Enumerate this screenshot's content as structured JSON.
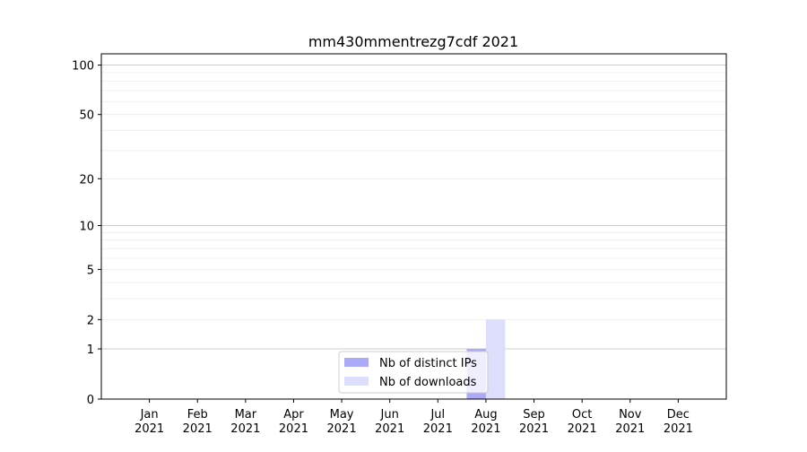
{
  "chart_data": {
    "type": "bar",
    "title": "mm430mmentrezg7cdf 2021",
    "xlabel": "",
    "ylabel": "",
    "y_scale": "log(1+y)",
    "ylim": [
      0,
      117
    ],
    "y_ticks": [
      0,
      1,
      2,
      5,
      10,
      20,
      50,
      100
    ],
    "y_tick_labels": [
      "0",
      "1",
      "2",
      "5",
      "10",
      "20",
      "50",
      "100"
    ],
    "grid": true,
    "legend_placement": "lower-center",
    "categories": [
      "Jan\n2021",
      "Feb\n2021",
      "Mar\n2021",
      "Apr\n2021",
      "May\n2021",
      "Jun\n2021",
      "Jul\n2021",
      "Aug\n2021",
      "Sep\n2021",
      "Oct\n2021",
      "Nov\n2021",
      "Dec\n2021"
    ],
    "category_months": [
      "Jan",
      "Feb",
      "Mar",
      "Apr",
      "May",
      "Jun",
      "Jul",
      "Aug",
      "Sep",
      "Oct",
      "Nov",
      "Dec"
    ],
    "category_year": "2021",
    "series": [
      {
        "name": "Nb of distinct IPs",
        "color": "#aaaaf8",
        "values": [
          0,
          0,
          0,
          0,
          0,
          0,
          0,
          1,
          0,
          0,
          0,
          0
        ]
      },
      {
        "name": "Nb of downloads",
        "color": "#ddddfc",
        "values": [
          0,
          0,
          0,
          0,
          0,
          0,
          0,
          2,
          0,
          0,
          0,
          0
        ]
      }
    ]
  }
}
